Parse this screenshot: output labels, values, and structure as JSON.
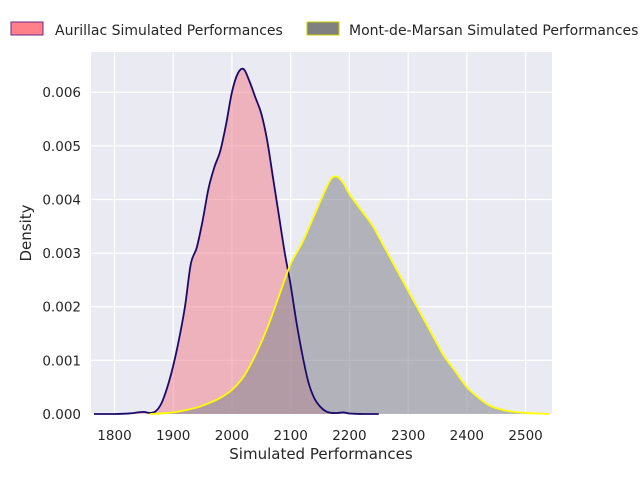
{
  "chart_data": {
    "type": "area",
    "xlabel": "Simulated Performances",
    "ylabel": "Density",
    "xlim": [
      1760,
      2545
    ],
    "ylim": [
      0,
      0.00675
    ],
    "x_ticks": [
      1800,
      1900,
      2000,
      2100,
      2200,
      2300,
      2400,
      2500
    ],
    "x_tick_labels": [
      "1800",
      "1900",
      "2000",
      "2100",
      "2200",
      "2300",
      "2400",
      "2500"
    ],
    "y_ticks": [
      0,
      0.001,
      0.002,
      0.003,
      0.004,
      0.005,
      0.006
    ],
    "y_tick_labels": [
      "0.000",
      "0.001",
      "0.002",
      "0.003",
      "0.004",
      "0.005",
      "0.006"
    ],
    "grid": true,
    "legend_placement": "top",
    "series": [
      {
        "name": "Aurillac Simulated Performances",
        "fill_color": "#f07a86",
        "fill_opacity": 0.5,
        "line_color": "#1a0a6e",
        "legend_fill": "#ff8088",
        "legend_edge": "#6a2a8c",
        "points": [
          [
            1765,
            0.0
          ],
          [
            1800,
            0.0
          ],
          [
            1825,
            1e-05
          ],
          [
            1840,
            3e-05
          ],
          [
            1850,
            4e-05
          ],
          [
            1860,
            2e-05
          ],
          [
            1870,
            5e-05
          ],
          [
            1880,
            0.0002
          ],
          [
            1890,
            0.0005
          ],
          [
            1900,
            0.0009
          ],
          [
            1910,
            0.0014
          ],
          [
            1920,
            0.002
          ],
          [
            1930,
            0.0028
          ],
          [
            1940,
            0.0031
          ],
          [
            1950,
            0.0036
          ],
          [
            1960,
            0.0042
          ],
          [
            1970,
            0.0046
          ],
          [
            1980,
            0.0049
          ],
          [
            1990,
            0.0054
          ],
          [
            2000,
            0.006
          ],
          [
            2010,
            0.00635
          ],
          [
            2020,
            0.00643
          ],
          [
            2030,
            0.0062
          ],
          [
            2040,
            0.0059
          ],
          [
            2050,
            0.0056
          ],
          [
            2060,
            0.0051
          ],
          [
            2070,
            0.0044
          ],
          [
            2080,
            0.0037
          ],
          [
            2090,
            0.003
          ],
          [
            2100,
            0.0024
          ],
          [
            2110,
            0.0017
          ],
          [
            2120,
            0.0011
          ],
          [
            2130,
            0.0006
          ],
          [
            2140,
            0.0003
          ],
          [
            2150,
            0.00014
          ],
          [
            2160,
            5e-05
          ],
          [
            2170,
            2e-05
          ],
          [
            2180,
            2e-05
          ],
          [
            2190,
            3e-05
          ],
          [
            2200,
            1e-05
          ],
          [
            2225,
            0.0
          ],
          [
            2250,
            0.0
          ]
        ]
      },
      {
        "name": "Mont-de-Marsan Simulated Performances",
        "fill_color": "#8c8c96",
        "fill_opacity": 0.6,
        "line_color": "#ffff00",
        "legend_fill": "#808080",
        "legend_edge": "#cccc00",
        "points": [
          [
            1860,
            0.0
          ],
          [
            1880,
            1e-05
          ],
          [
            1900,
            3e-05
          ],
          [
            1920,
            7e-05
          ],
          [
            1940,
            0.00012
          ],
          [
            1960,
            0.0002
          ],
          [
            1980,
            0.0003
          ],
          [
            2000,
            0.00045
          ],
          [
            2020,
            0.0007
          ],
          [
            2040,
            0.0011
          ],
          [
            2060,
            0.0016
          ],
          [
            2080,
            0.0022
          ],
          [
            2100,
            0.0028
          ],
          [
            2120,
            0.0032
          ],
          [
            2140,
            0.0037
          ],
          [
            2160,
            0.0042
          ],
          [
            2170,
            0.0044
          ],
          [
            2180,
            0.00442
          ],
          [
            2190,
            0.0043
          ],
          [
            2200,
            0.0041
          ],
          [
            2220,
            0.0038
          ],
          [
            2240,
            0.0035
          ],
          [
            2260,
            0.0031
          ],
          [
            2280,
            0.0027
          ],
          [
            2300,
            0.0023
          ],
          [
            2320,
            0.0019
          ],
          [
            2340,
            0.0015
          ],
          [
            2360,
            0.0011
          ],
          [
            2380,
            0.0008
          ],
          [
            2400,
            0.0005
          ],
          [
            2420,
            0.0003
          ],
          [
            2440,
            0.00015
          ],
          [
            2460,
            8e-05
          ],
          [
            2480,
            4e-05
          ],
          [
            2500,
            2e-05
          ],
          [
            2520,
            1e-05
          ],
          [
            2540,
            0.0
          ]
        ]
      }
    ]
  }
}
